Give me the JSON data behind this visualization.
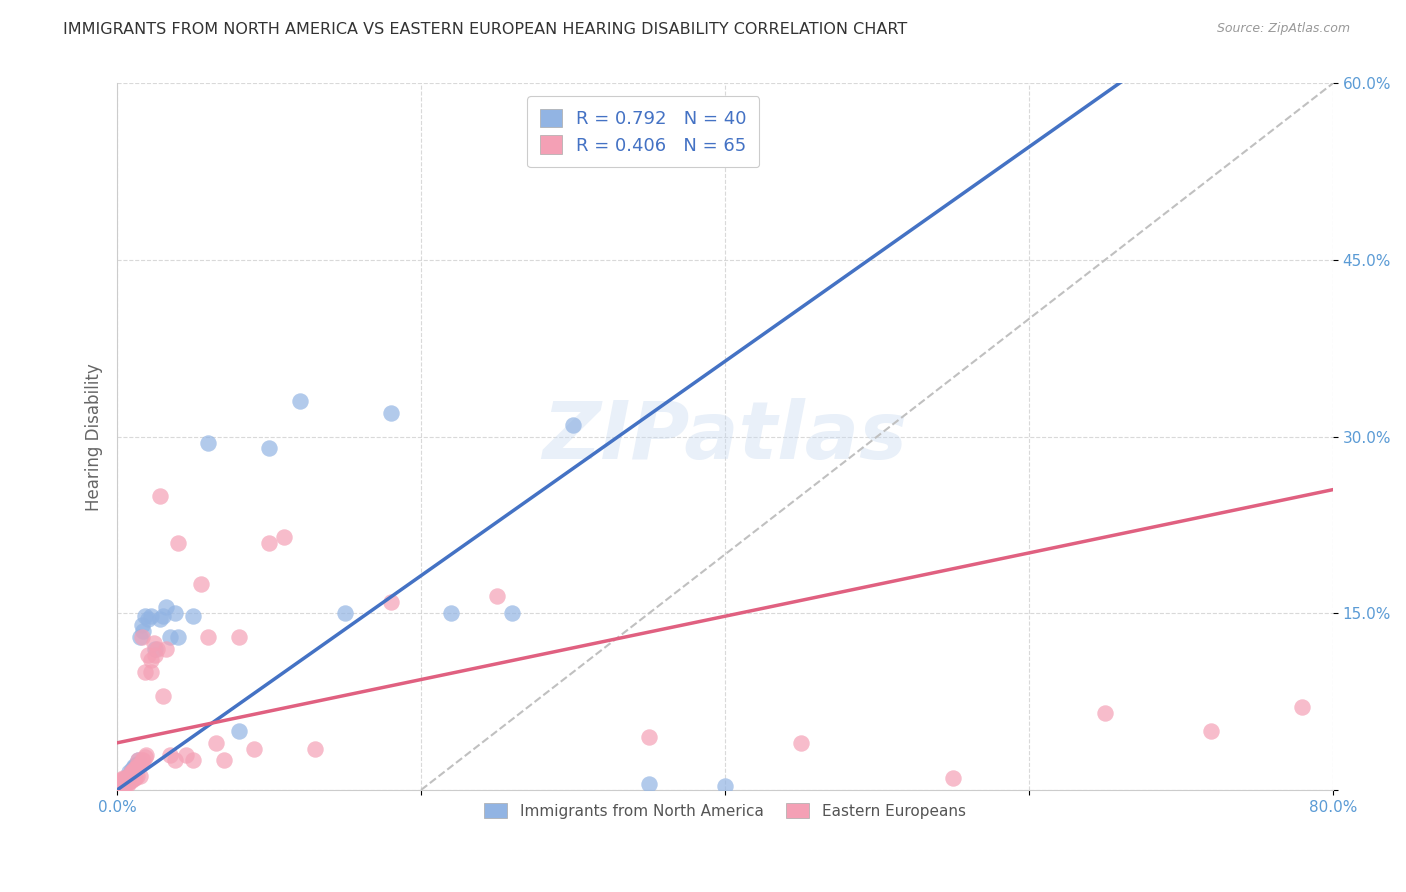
{
  "title": "IMMIGRANTS FROM NORTH AMERICA VS EASTERN EUROPEAN HEARING DISABILITY CORRELATION CHART",
  "source": "Source: ZipAtlas.com",
  "ylabel": "Hearing Disability",
  "xlim": [
    0.0,
    0.8
  ],
  "ylim": [
    0.0,
    0.6
  ],
  "xticks": [
    0.0,
    0.2,
    0.4,
    0.6,
    0.8
  ],
  "xticklabels": [
    "0.0%",
    "",
    "",
    "",
    "80.0%"
  ],
  "yticks": [
    0.0,
    0.15,
    0.3,
    0.45,
    0.6
  ],
  "yticklabels": [
    "",
    "15.0%",
    "30.0%",
    "45.0%",
    "60.0%"
  ],
  "legend1_label": "R = 0.792   N = 40",
  "legend2_label": "R = 0.406   N = 65",
  "legend_bottom1": "Immigrants from North America",
  "legend_bottom2": "Eastern Europeans",
  "blue_color": "#92b4e3",
  "pink_color": "#f4a0b5",
  "blue_line_color": "#4472c4",
  "pink_line_color": "#e06080",
  "dashed_line_color": "#c0c0c0",
  "watermark": "ZIPatlas",
  "blue_line_x0": 0.0,
  "blue_line_y0": 0.0,
  "blue_line_x1": 0.5,
  "blue_line_y1": 0.455,
  "pink_line_x0": 0.0,
  "pink_line_y0": 0.04,
  "pink_line_x1": 0.8,
  "pink_line_y1": 0.255,
  "dash_line_x0": 0.2,
  "dash_line_y0": 0.0,
  "dash_line_x1": 0.8,
  "dash_line_y1": 0.6,
  "north_america_x": [
    0.002,
    0.003,
    0.004,
    0.005,
    0.006,
    0.006,
    0.007,
    0.008,
    0.008,
    0.009,
    0.01,
    0.011,
    0.012,
    0.013,
    0.014,
    0.015,
    0.016,
    0.017,
    0.018,
    0.02,
    0.022,
    0.025,
    0.028,
    0.03,
    0.032,
    0.035,
    0.038,
    0.04,
    0.05,
    0.06,
    0.08,
    0.1,
    0.12,
    0.15,
    0.18,
    0.22,
    0.26,
    0.3,
    0.35,
    0.4
  ],
  "north_america_y": [
    0.003,
    0.005,
    0.005,
    0.007,
    0.008,
    0.01,
    0.01,
    0.012,
    0.015,
    0.015,
    0.018,
    0.02,
    0.02,
    0.022,
    0.025,
    0.13,
    0.14,
    0.135,
    0.148,
    0.145,
    0.148,
    0.12,
    0.145,
    0.148,
    0.155,
    0.13,
    0.15,
    0.13,
    0.148,
    0.295,
    0.05,
    0.29,
    0.33,
    0.15,
    0.32,
    0.15,
    0.15,
    0.31,
    0.005,
    0.003
  ],
  "eastern_europe_x": [
    0.001,
    0.002,
    0.002,
    0.003,
    0.003,
    0.004,
    0.004,
    0.005,
    0.005,
    0.006,
    0.006,
    0.007,
    0.007,
    0.008,
    0.008,
    0.009,
    0.009,
    0.01,
    0.01,
    0.011,
    0.011,
    0.012,
    0.012,
    0.013,
    0.013,
    0.014,
    0.015,
    0.015,
    0.016,
    0.016,
    0.017,
    0.018,
    0.018,
    0.019,
    0.02,
    0.022,
    0.022,
    0.024,
    0.025,
    0.026,
    0.028,
    0.03,
    0.032,
    0.035,
    0.038,
    0.04,
    0.045,
    0.05,
    0.055,
    0.06,
    0.065,
    0.07,
    0.08,
    0.09,
    0.1,
    0.11,
    0.13,
    0.18,
    0.25,
    0.35,
    0.45,
    0.55,
    0.65,
    0.72,
    0.78
  ],
  "eastern_europe_y": [
    0.005,
    0.005,
    0.008,
    0.005,
    0.008,
    0.005,
    0.01,
    0.005,
    0.01,
    0.005,
    0.01,
    0.005,
    0.01,
    0.007,
    0.012,
    0.008,
    0.015,
    0.008,
    0.015,
    0.01,
    0.018,
    0.01,
    0.018,
    0.012,
    0.02,
    0.025,
    0.012,
    0.022,
    0.13,
    0.025,
    0.025,
    0.028,
    0.1,
    0.03,
    0.115,
    0.11,
    0.1,
    0.125,
    0.115,
    0.12,
    0.25,
    0.08,
    0.12,
    0.03,
    0.025,
    0.21,
    0.03,
    0.025,
    0.175,
    0.13,
    0.04,
    0.025,
    0.13,
    0.035,
    0.21,
    0.215,
    0.035,
    0.16,
    0.165,
    0.045,
    0.04,
    0.01,
    0.065,
    0.05,
    0.07
  ]
}
